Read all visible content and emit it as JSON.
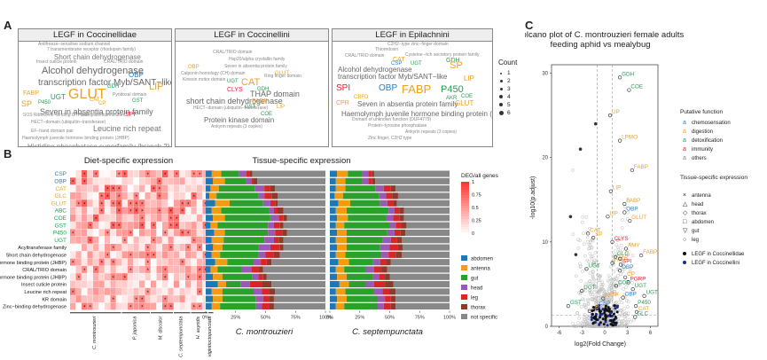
{
  "panel_letters": {
    "a": "A",
    "b": "B",
    "c": "C"
  },
  "word_clouds": [
    {
      "title": "LEGF in Coccinellidae",
      "words": [
        {
          "text": "Antifreeze−sensitive sodium channel",
          "color": "#888888"
        },
        {
          "text": "7 transmembrane receptor (rhodopsin family)",
          "color": "#888888"
        },
        {
          "text": "Short chain dehydrogenase",
          "color": "#777777"
        },
        {
          "text": "Insect cuticle protein",
          "color": "#888888"
        },
        {
          "text": "CRAL/TRIO domain",
          "color": "#888888"
        },
        {
          "text": "Alcohol dehydrogenase",
          "color": "#666666"
        },
        {
          "text": "OBP",
          "color": "#2a7ec4"
        },
        {
          "text": "transcription factor Myb/SANT−like",
          "color": "#666666"
        },
        {
          "text": "LIP",
          "color": "#f0a020"
        },
        {
          "text": "GLUT",
          "color": "#f0a020"
        },
        {
          "text": "GDH",
          "color": "#22a050"
        },
        {
          "text": "UGT",
          "color": "#22a050"
        },
        {
          "text": "FABP",
          "color": "#f0a020"
        },
        {
          "text": "Pyridoxal domain",
          "color": "#888888"
        },
        {
          "text": "SP",
          "color": "#f0a020"
        },
        {
          "text": "P450",
          "color": "#22a050"
        },
        {
          "text": "CAT",
          "color": "#f0a020"
        },
        {
          "text": "CP",
          "color": "#f0a020"
        },
        {
          "text": "GST",
          "color": "#22a050"
        },
        {
          "text": "Seven in absentia protein family",
          "color": "#666666"
        },
        {
          "text": "SOS Ribosome−binding GTPase",
          "color": "#888888"
        },
        {
          "text": "Endoplasmic reticulum",
          "color": "#888888"
        },
        {
          "text": "SPI",
          "color": "#e02030"
        },
        {
          "text": "HECT−domain (ubiquitin−transferase)",
          "color": "#888888"
        },
        {
          "text": "Leucine rich repeat",
          "color": "#777777"
        },
        {
          "text": "EF−hand domain pair",
          "color": "#888888"
        },
        {
          "text": "Haemolymph juvenile hormone binding protein (JHBP)",
          "color": "#888888"
        },
        {
          "text": "Histidine phosphatase superfamily (branch 2)",
          "color": "#777777"
        }
      ]
    },
    {
      "title": "LEGF in Coccinellini",
      "words": [
        {
          "text": "CRAL/TRIO domain",
          "color": "#888888"
        },
        {
          "text": "Hsp20/alpha crystallin family",
          "color": "#888888"
        },
        {
          "text": "OBP",
          "color": "#f0a020"
        },
        {
          "text": "Seven in absentia protein family",
          "color": "#888888"
        },
        {
          "text": "Calponin homology (CH) domain",
          "color": "#888888"
        },
        {
          "text": "Ring finger domain",
          "color": "#888888"
        },
        {
          "text": "GLUT",
          "color": "#f0a020"
        },
        {
          "text": "Kinesin motor domain",
          "color": "#888888"
        },
        {
          "text": "UGT",
          "color": "#22a050"
        },
        {
          "text": "CAT",
          "color": "#f0a020"
        },
        {
          "text": "THAP domain",
          "color": "#666666"
        },
        {
          "text": "short chain dehydrogenase",
          "color": "#666666"
        },
        {
          "text": "GDH",
          "color": "#22a050"
        },
        {
          "text": "CLYS",
          "color": "#e02030"
        },
        {
          "text": "FABP",
          "color": "#f0a020"
        },
        {
          "text": "GST",
          "color": "#22a050"
        },
        {
          "text": "HECT−domain (ubiquitin−transferase)",
          "color": "#888888"
        },
        {
          "text": "COE",
          "color": "#22a050"
        },
        {
          "text": "LIP",
          "color": "#f0a020"
        },
        {
          "text": "Protein kinase domain",
          "color": "#666666"
        },
        {
          "text": "Ankyrin repeats (3 copies)",
          "color": "#888888"
        }
      ]
    },
    {
      "title": "LEGF in Epilachnini",
      "words": [
        {
          "text": "C2H2−type zinc−finger domain",
          "color": "#888888"
        },
        {
          "text": "Thioredoxin",
          "color": "#888888"
        },
        {
          "text": "Cysteine−rich secretory protein family",
          "color": "#888888"
        },
        {
          "text": "CRAL/TRIO domain",
          "color": "#888888"
        },
        {
          "text": "CAT",
          "color": "#f0a020"
        },
        {
          "text": "GDH",
          "color": "#22a050"
        },
        {
          "text": "CSP",
          "color": "#2a7ec4"
        },
        {
          "text": "UGT",
          "color": "#22a050"
        },
        {
          "text": "SP",
          "color": "#f0a020"
        },
        {
          "text": "LIP",
          "color": "#f0a020"
        },
        {
          "text": "Alcohol dehydrogenase",
          "color": "#666666"
        },
        {
          "text": "transcription factor Myb/SANT−like",
          "color": "#666666"
        },
        {
          "text": "SPI",
          "color": "#e02030"
        },
        {
          "text": "OBP",
          "color": "#2a7ec4"
        },
        {
          "text": "FABP",
          "color": "#f0a020"
        },
        {
          "text": "P450",
          "color": "#22a050"
        },
        {
          "text": "AKR",
          "color": "#22a050"
        },
        {
          "text": "COE",
          "color": "#22a050"
        },
        {
          "text": "CBFD",
          "color": "#f0a020"
        },
        {
          "text": "Seven in absentia protein family",
          "color": "#666666"
        },
        {
          "text": "GLUT",
          "color": "#f0a020"
        },
        {
          "text": "CPR",
          "color": "#f0a020"
        },
        {
          "text": "Haemolymph juvenile hormone binding protein (JHBP)",
          "color": "#666666"
        },
        {
          "text": "Domain of unknown function (DUF4779)",
          "color": "#888888"
        },
        {
          "text": "Protein−tyrosine phosphatase",
          "color": "#888888"
        },
        {
          "text": "Ankyrin repeats (3 copies)",
          "color": "#888888"
        },
        {
          "text": "Zinc finger, C2H2 type",
          "color": "#888888"
        }
      ]
    }
  ],
  "cloud_legend": {
    "title": "Count",
    "items": [
      "1",
      "2",
      "3",
      "4",
      "5",
      "6"
    ]
  },
  "panel_b": {
    "diet_title": "Diet-specific expression",
    "tissue_title": "Tissue-specific expression",
    "row_labels": [
      {
        "text": "CSP",
        "color": "#2a7ec4"
      },
      {
        "text": "OBP",
        "color": "#2a7ec4"
      },
      {
        "text": "CAT",
        "color": "#f0a020"
      },
      {
        "text": "GLC",
        "color": "#f0a020"
      },
      {
        "text": "GLUT",
        "color": "#f0a020"
      },
      {
        "text": "ABC",
        "color": "#22a050"
      },
      {
        "text": "COE",
        "color": "#22a050"
      },
      {
        "text": "GST",
        "color": "#22a050"
      },
      {
        "text": "P450",
        "color": "#22a050"
      },
      {
        "text": "UGT",
        "color": "#22a050"
      },
      {
        "text": "Acyltransferase family",
        "color": "#111111"
      },
      {
        "text": "Short chain dehydrogenase",
        "color": "#111111"
      },
      {
        "text": "Haemolymph juvenile hormone binding protein (JHBP)",
        "color": "#111111"
      },
      {
        "text": "CRAL/TRIO domain",
        "color": "#111111"
      },
      {
        "text": "Haemolymph juvenile hormone binding protein (JHBP)",
        "color": "#111111"
      },
      {
        "text": "Insect cuticle protein",
        "color": "#111111"
      },
      {
        "text": "Leucine rich repeat",
        "color": "#111111"
      },
      {
        "text": "KR domain",
        "color": "#111111"
      },
      {
        "text": "Zinc−binding dehydrogenase",
        "color": "#111111"
      }
    ],
    "species": [
      "C. montrouzieri",
      "P. japonica",
      "M. discolor",
      "C. septempunctata",
      "H. axyridis",
      "H. vigintioctopunctata"
    ],
    "species_columns": [
      9,
      5,
      4,
      3,
      3,
      1
    ],
    "species_x_labels": [
      "C. montrouzieri",
      "P. japonica",
      "M. discolor",
      "C. septempunctata",
      "H. axyridis",
      "H. vigintioctopunctata"
    ],
    "tissue_species": [
      "C. montrouzieri",
      "C. septempunctata"
    ],
    "tissue_categories": [
      "abdomen",
      "antenna",
      "gut",
      "head",
      "leg",
      "thorax",
      "not specific"
    ],
    "tissue_colors": [
      "#1f77b4",
      "#f39c12",
      "#2ca02c",
      "#9b59b6",
      "#d62728",
      "#8c3b2a",
      "#888888"
    ],
    "tissue_x_ticks": [
      "0%",
      "25%",
      "50%",
      "75%",
      "100%"
    ],
    "tissue_bars_montrouzieri": [
      [
        5,
        8,
        15,
        6,
        3,
        2,
        61
      ],
      [
        6,
        10,
        18,
        4,
        2,
        3,
        57
      ],
      [
        4,
        7,
        30,
        8,
        5,
        4,
        42
      ],
      [
        3,
        6,
        35,
        5,
        6,
        5,
        40
      ],
      [
        8,
        12,
        28,
        6,
        4,
        2,
        40
      ],
      [
        5,
        8,
        40,
        4,
        3,
        5,
        35
      ],
      [
        6,
        10,
        38,
        7,
        4,
        3,
        32
      ],
      [
        4,
        6,
        42,
        5,
        5,
        3,
        35
      ],
      [
        7,
        9,
        36,
        6,
        6,
        4,
        32
      ],
      [
        5,
        10,
        34,
        8,
        4,
        4,
        35
      ],
      [
        6,
        8,
        30,
        10,
        8,
        3,
        35
      ],
      [
        5,
        7,
        32,
        6,
        7,
        5,
        38
      ],
      [
        8,
        10,
        22,
        6,
        5,
        4,
        45
      ],
      [
        4,
        6,
        20,
        8,
        6,
        4,
        52
      ],
      [
        6,
        8,
        25,
        5,
        4,
        3,
        49
      ],
      [
        10,
        7,
        12,
        8,
        10,
        8,
        45
      ],
      [
        5,
        9,
        26,
        7,
        6,
        5,
        42
      ],
      [
        6,
        8,
        28,
        6,
        5,
        4,
        43
      ],
      [
        5,
        7,
        30,
        5,
        6,
        4,
        43
      ]
    ],
    "tissue_bars_septempunctata": [
      [
        6,
        9,
        12,
        5,
        3,
        2,
        63
      ],
      [
        5,
        8,
        14,
        5,
        3,
        3,
        62
      ],
      [
        5,
        8,
        25,
        7,
        6,
        4,
        45
      ],
      [
        4,
        7,
        30,
        6,
        5,
        5,
        43
      ],
      [
        7,
        10,
        25,
        6,
        5,
        3,
        44
      ],
      [
        5,
        9,
        35,
        5,
        4,
        4,
        38
      ],
      [
        6,
        9,
        32,
        6,
        5,
        4,
        38
      ],
      [
        5,
        7,
        38,
        5,
        5,
        4,
        36
      ],
      [
        6,
        8,
        34,
        6,
        5,
        4,
        37
      ],
      [
        5,
        9,
        30,
        7,
        5,
        4,
        40
      ],
      [
        6,
        8,
        28,
        8,
        7,
        4,
        39
      ],
      [
        5,
        8,
        30,
        6,
        6,
        5,
        40
      ],
      [
        7,
        9,
        20,
        6,
        5,
        4,
        49
      ],
      [
        5,
        7,
        18,
        7,
        6,
        5,
        52
      ],
      [
        6,
        8,
        22,
        5,
        5,
        4,
        50
      ],
      [
        8,
        8,
        14,
        7,
        9,
        7,
        47
      ],
      [
        5,
        8,
        24,
        7,
        6,
        5,
        45
      ],
      [
        6,
        8,
        26,
        6,
        5,
        4,
        45
      ],
      [
        5,
        7,
        28,
        5,
        6,
        4,
        45
      ]
    ],
    "colorbar": {
      "title": "DEG/all genes",
      "ticks": [
        "1",
        "0.75",
        "0.5",
        "0.25",
        "0"
      ]
    }
  },
  "panel_c": {
    "title_line1": "Volcano plot of C. montrouzieri female adults",
    "title_line2": "feeding aphid vs mealybug",
    "xlabel": "log2(Fold Change)",
    "ylabel": "-log10(p.adjust)",
    "x_ticks": [
      "-6",
      "-3",
      "0",
      "3",
      "6"
    ],
    "y_ticks": [
      "0",
      "10",
      "20",
      "30"
    ],
    "xlim": [
      -7,
      7
    ],
    "ylim": [
      0,
      31
    ],
    "function_legend_title": "Putative function",
    "function_legend": [
      {
        "label": "chemosensation",
        "color": "#2a7ec4"
      },
      {
        "label": "digestion",
        "color": "#f0a020"
      },
      {
        "label": "detoxification",
        "color": "#22a050"
      },
      {
        "label": "immunity",
        "color": "#e02030"
      },
      {
        "label": "others",
        "color": "#888888"
      }
    ],
    "tissue_legend_title": "Tissue-specific expression",
    "tissue_legend": [
      {
        "label": "antenna",
        "symbol": "×"
      },
      {
        "label": "head",
        "symbol": "△"
      },
      {
        "label": "thorax",
        "symbol": "◇"
      },
      {
        "label": "abdomen",
        "symbol": "□"
      },
      {
        "label": "gut",
        "symbol": "▽"
      },
      {
        "label": "leg",
        "symbol": "○"
      }
    ],
    "legf_legend": [
      {
        "label": "LEGF in Coccinellidae",
        "color": "#111111"
      },
      {
        "label": "LEGF in Coccinellini",
        "color": "#1a2a8c"
      }
    ],
    "labels": [
      {
        "text": "GDH",
        "x": 2.0,
        "y": 29.5,
        "color": "#22a050"
      },
      {
        "text": "COE",
        "x": 3.2,
        "y": 28.0,
        "color": "#22a050"
      },
      {
        "text": "UP",
        "x": 0.7,
        "y": 25.0,
        "color": "#f0a020"
      },
      {
        "text": "LPMO",
        "x": 2.0,
        "y": 22.0,
        "color": "#f0a020"
      },
      {
        "text": "FABP",
        "x": 3.6,
        "y": 18.5,
        "color": "#f0a020"
      },
      {
        "text": "LIP",
        "x": 0.8,
        "y": 16.0,
        "color": "#f0a020"
      },
      {
        "text": "FABP",
        "x": 2.6,
        "y": 14.5,
        "color": "#f0a020"
      },
      {
        "text": "OBP",
        "x": 2.6,
        "y": 13.5,
        "color": "#2a7ec4"
      },
      {
        "text": "LIP",
        "x": 0.4,
        "y": 13.0,
        "color": "#f0a020"
      },
      {
        "text": "GLUT",
        "x": 3.3,
        "y": 12.5,
        "color": "#f0a020"
      },
      {
        "text": "CAT",
        "x": -2.2,
        "y": 11.0,
        "color": "#f0a020"
      },
      {
        "text": "SP",
        "x": -1.5,
        "y": 10.5,
        "color": "#f0a020"
      },
      {
        "text": "CLYS",
        "x": 1.0,
        "y": 10.0,
        "color": "#e02030"
      },
      {
        "text": "AMY",
        "x": 2.8,
        "y": 9.2,
        "color": "#f0a020"
      },
      {
        "text": "GLC",
        "x": 1.4,
        "y": 8.2,
        "color": "#22a050"
      },
      {
        "text": "FATP",
        "x": 1.0,
        "y": 7.5,
        "color": "#f0a020"
      },
      {
        "text": "LIP",
        "x": 2.0,
        "y": 8.0,
        "color": "#f0a020"
      },
      {
        "text": "SPI",
        "x": 2.1,
        "y": 7.3,
        "color": "#e02030"
      },
      {
        "text": "FABP",
        "x": 4.8,
        "y": 8.4,
        "color": "#f0a020"
      },
      {
        "text": "OBP",
        "x": 2.0,
        "y": 6.6,
        "color": "#2a7ec4"
      },
      {
        "text": "UGT",
        "x": -2.4,
        "y": 6.8,
        "color": "#22a050"
      },
      {
        "text": "CP",
        "x": 2.7,
        "y": 5.8,
        "color": "#f0a020"
      },
      {
        "text": "PGRP",
        "x": 3.1,
        "y": 5.2,
        "color": "#e02030"
      },
      {
        "text": "COE",
        "x": 1.5,
        "y": 4.8,
        "color": "#22a050"
      },
      {
        "text": "UGT",
        "x": 3.7,
        "y": 4.4,
        "color": "#22a050"
      },
      {
        "text": "UGT",
        "x": -3.0,
        "y": 4.2,
        "color": "#22a050"
      },
      {
        "text": "UGT",
        "x": 5.2,
        "y": 3.6,
        "color": "#22a050"
      },
      {
        "text": "FATP",
        "x": -0.2,
        "y": 3.3,
        "color": "#f0a020"
      },
      {
        "text": "OBP",
        "x": 2.4,
        "y": 3.4,
        "color": "#2a7ec4"
      },
      {
        "text": "CSP",
        "x": -1.0,
        "y": 2.3,
        "color": "#2a7ec4"
      },
      {
        "text": "GST",
        "x": -4.8,
        "y": 2.4,
        "color": "#22a050"
      },
      {
        "text": "LIP",
        "x": -2.0,
        "y": 1.8,
        "color": "#f0a020"
      },
      {
        "text": "P450",
        "x": 4.1,
        "y": 2.4,
        "color": "#22a050"
      },
      {
        "text": "CAT",
        "x": 4.2,
        "y": 1.7,
        "color": "#f0a020"
      },
      {
        "text": "GLC",
        "x": 4.0,
        "y": 1.1,
        "color": "#22a050"
      }
    ]
  }
}
